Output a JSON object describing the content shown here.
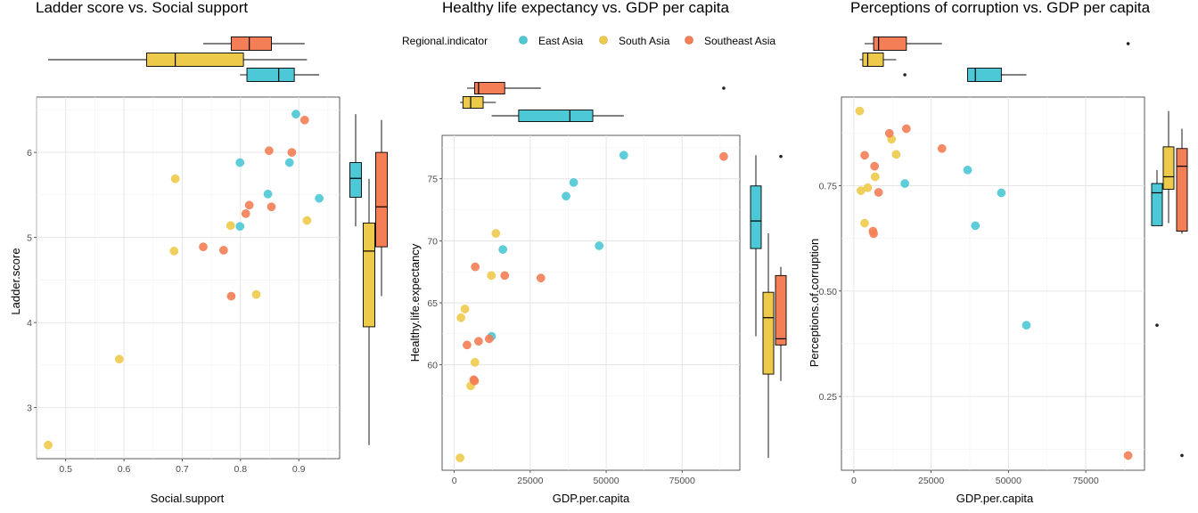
{
  "colors": {
    "East Asia": "#4DC8D6",
    "South Asia": "#EECA4B",
    "Southeast Asia": "#F47E55"
  },
  "legend": {
    "title": "Regional.indicator",
    "items": [
      "East Asia",
      "South Asia",
      "Southeast Asia"
    ]
  },
  "chart_data": [
    {
      "type": "scatter",
      "title": "Ladder score vs. Social support",
      "xlabel": "Social.support",
      "ylabel": "Ladder.score",
      "xlim": [
        0.45,
        0.97
      ],
      "ylim": [
        2.4,
        6.65
      ],
      "xticks": [
        "0.5",
        "0.6",
        "0.7",
        "0.8",
        "0.9"
      ],
      "yticks": [
        "3",
        "4",
        "5",
        "6"
      ],
      "grid": true,
      "marginal": "boxplots",
      "series": [
        {
          "name": "East Asia",
          "points": [
            [
              0.895,
              6.45
            ],
            [
              0.799,
              5.88
            ],
            [
              0.847,
              5.51
            ],
            [
              0.935,
              5.46
            ],
            [
              0.799,
              5.13
            ],
            [
              0.884,
              5.88
            ]
          ]
        },
        {
          "name": "South Asia",
          "points": [
            [
              0.688,
              5.69
            ],
            [
              0.914,
              5.2
            ],
            [
              0.783,
              5.14
            ],
            [
              0.686,
              4.84
            ],
            [
              0.827,
              4.33
            ],
            [
              0.592,
              3.57
            ],
            [
              0.47,
              2.56
            ]
          ]
        },
        {
          "name": "Southeast Asia",
          "points": [
            [
              0.91,
              6.38
            ],
            [
              0.849,
              6.02
            ],
            [
              0.888,
              6.0
            ],
            [
              0.815,
              5.38
            ],
            [
              0.853,
              5.36
            ],
            [
              0.809,
              5.28
            ],
            [
              0.736,
              4.89
            ],
            [
              0.771,
              4.85
            ],
            [
              0.784,
              4.31
            ]
          ]
        }
      ]
    },
    {
      "type": "scatter",
      "title": "Healthy life expectancy vs. GDP per capita",
      "xlabel": "GDP.per.capita",
      "ylabel": "Healthy.life.expectancy",
      "xlim": [
        -4000,
        94000
      ],
      "ylim": [
        51.5,
        78.5
      ],
      "xticks": [
        "0",
        "25000",
        "50000",
        "75000"
      ],
      "yticks": [
        "60",
        "65",
        "70",
        "75"
      ],
      "grid": true,
      "marginal": "boxplots",
      "series": [
        {
          "name": "East Asia",
          "points": [
            [
              55800,
              76.9
            ],
            [
              39300,
              74.7
            ],
            [
              36800,
              73.6
            ],
            [
              47700,
              69.6
            ],
            [
              16000,
              69.3
            ],
            [
              12300,
              62.3
            ]
          ]
        },
        {
          "name": "South Asia",
          "points": [
            [
              13700,
              70.6
            ],
            [
              12200,
              67.2
            ],
            [
              2200,
              63.8
            ],
            [
              3500,
              64.5
            ],
            [
              6800,
              60.2
            ],
            [
              5400,
              58.3
            ],
            [
              1900,
              52.5
            ]
          ]
        },
        {
          "name": "Southeast Asia",
          "points": [
            [
              88700,
              76.8
            ],
            [
              6900,
              67.9
            ],
            [
              16600,
              67.2
            ],
            [
              28500,
              67.0
            ],
            [
              8000,
              61.9
            ],
            [
              11500,
              62.1
            ],
            [
              4200,
              61.6
            ],
            [
              6400,
              58.8
            ],
            [
              6700,
              58.7
            ]
          ]
        }
      ]
    },
    {
      "type": "scatter",
      "title": "Perceptions of corruption vs. GDP per capita",
      "xlabel": "GDP.per.capita",
      "ylabel": "Perceptions.of.corruption",
      "xlim": [
        -4000,
        94000
      ],
      "ylim": [
        0.075,
        0.96
      ],
      "xticks": [
        "0",
        "25000",
        "50000",
        "75000"
      ],
      "yticks": [
        "0.25",
        "0.50",
        "0.75"
      ],
      "grid": true,
      "marginal": "boxplots",
      "series": [
        {
          "name": "East Asia",
          "points": [
            [
              36800,
              0.787
            ],
            [
              16500,
              0.755
            ],
            [
              47700,
              0.733
            ],
            [
              39300,
              0.655
            ],
            [
              55800,
              0.419
            ]
          ]
        },
        {
          "name": "South Asia",
          "points": [
            [
              1900,
              0.927
            ],
            [
              12200,
              0.86
            ],
            [
              13700,
              0.824
            ],
            [
              6900,
              0.771
            ],
            [
              4500,
              0.745
            ],
            [
              2300,
              0.738
            ],
            [
              3500,
              0.661
            ]
          ]
        },
        {
          "name": "Southeast Asia",
          "points": [
            [
              17000,
              0.885
            ],
            [
              11500,
              0.874
            ],
            [
              28500,
              0.838
            ],
            [
              3500,
              0.822
            ],
            [
              6700,
              0.796
            ],
            [
              8000,
              0.734
            ],
            [
              6200,
              0.642
            ],
            [
              6400,
              0.636
            ],
            [
              88700,
              0.11
            ]
          ]
        }
      ]
    }
  ]
}
